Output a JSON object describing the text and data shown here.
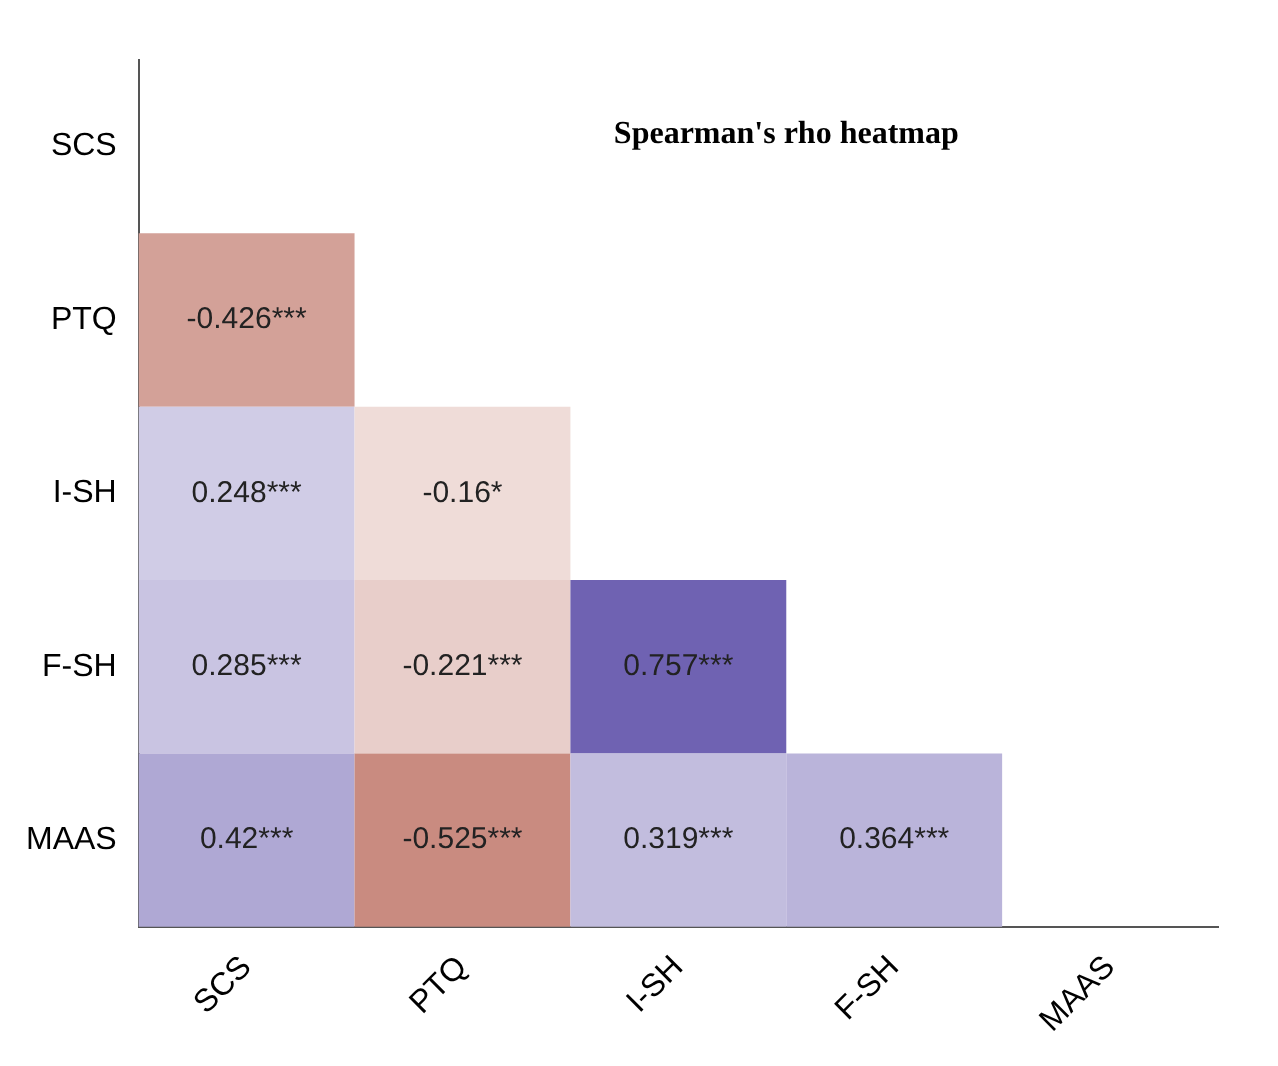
{
  "chart_data": {
    "type": "heatmap",
    "title": "Spearman's rho heatmap",
    "categories": [
      "SCS",
      "PTQ",
      "I-SH",
      "F-SH",
      "MAAS"
    ],
    "y_categories": [
      "SCS",
      "PTQ",
      "I-SH",
      "F-SH",
      "MAAS"
    ],
    "cells": [
      [
        null,
        null,
        null,
        null,
        null
      ],
      [
        -0.426,
        null,
        null,
        null,
        null
      ],
      [
        0.248,
        -0.16,
        null,
        null,
        null
      ],
      [
        0.285,
        -0.221,
        0.757,
        null,
        null
      ],
      [
        0.42,
        -0.525,
        0.319,
        0.364,
        null
      ]
    ],
    "cell_labels": [
      [
        null,
        null,
        null,
        null,
        null
      ],
      [
        "-0.426***",
        null,
        null,
        null,
        null
      ],
      [
        "0.248***",
        "-0.16*",
        null,
        null,
        null
      ],
      [
        "0.285***",
        "-0.221***",
        "0.757***",
        null,
        null
      ],
      [
        "0.42***",
        "-0.525***",
        "0.319***",
        "0.364***",
        null
      ]
    ],
    "grid": false,
    "legend": false
  }
}
